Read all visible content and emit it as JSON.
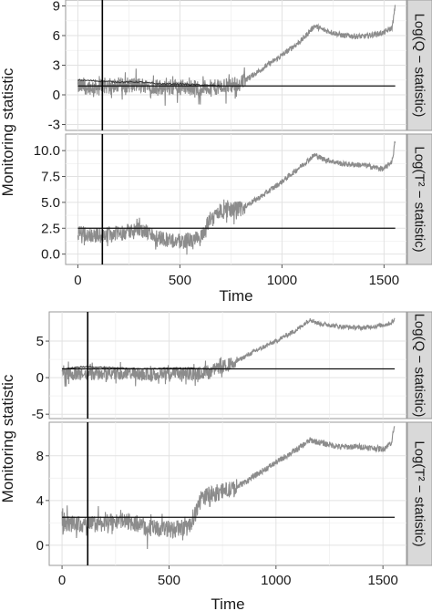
{
  "chart_data": [
    {
      "type": "line",
      "ylabel": "Monitoring statistic",
      "xlabel": "Time",
      "x_ticks": [
        0,
        500,
        1000,
        1500
      ],
      "xlim": [
        -60,
        1610
      ],
      "vertical_line_x": 120,
      "grid": true,
      "panels": [
        {
          "strip_label": "Log(Q − statistic)",
          "ylim": [
            -3.6,
            9.6
          ],
          "y_ticks": [
            "-3",
            "0",
            "3",
            "6",
            "9"
          ],
          "y_tick_values": [
            -3,
            0,
            3,
            6,
            9
          ],
          "control_limit": 0.9,
          "series": [
            {
              "name": "",
              "x": [
                0,
                100,
                200,
                300,
                400,
                500,
                600,
                700,
                800,
                900,
                1000,
                1100,
                1160,
                1200,
                1300,
                1400,
                1500,
                1540,
                1555
              ],
              "values": [
                0.8,
                0.8,
                1.0,
                1.0,
                0.8,
                0.8,
                0.7,
                0.8,
                1.2,
                2.6,
                4.0,
                5.6,
                7.0,
                6.6,
                6.0,
                5.9,
                6.3,
                6.8,
                9.0
              ]
            },
            {
              "name": "",
              "x": [
                0,
                100,
                200,
                300,
                400,
                500,
                600,
                700
              ],
              "values": [
                1.5,
                1.4,
                1.3,
                1.3,
                1.1,
                1.1,
                1.0,
                0.9
              ]
            }
          ]
        },
        {
          "strip_label": "Log(T² − statistic)",
          "ylim": [
            -1.0,
            11.6
          ],
          "y_ticks": [
            "0.0",
            "2.5",
            "5.0",
            "7.5",
            "10.0"
          ],
          "y_tick_values": [
            0,
            2.5,
            5,
            7.5,
            10
          ],
          "control_limit": 2.5,
          "series": [
            {
              "name": "",
              "x": [
                0,
                100,
                200,
                300,
                400,
                500,
                600,
                650,
                700,
                800,
                900,
                1000,
                1100,
                1160,
                1200,
                1300,
                1400,
                1500,
                1540,
                1555
              ],
              "values": [
                2.0,
                1.8,
                2.0,
                2.4,
                1.6,
                1.2,
                1.5,
                3.5,
                4.2,
                4.4,
                5.6,
                7.0,
                8.6,
                9.6,
                9.2,
                8.7,
                8.6,
                8.2,
                9.0,
                11.0
              ]
            }
          ]
        }
      ]
    },
    {
      "type": "line",
      "ylabel": "Monitoring statistic",
      "xlabel": "Time",
      "x_ticks": [
        0,
        500,
        1000,
        1500
      ],
      "xlim": [
        -60,
        1610
      ],
      "vertical_line_x": 120,
      "grid": true,
      "panels": [
        {
          "strip_label": "Log(Q − statistic)",
          "ylim": [
            -5.6,
            9.0
          ],
          "y_ticks": [
            "-5",
            "0",
            "5"
          ],
          "y_tick_values": [
            -5,
            0,
            5
          ],
          "control_limit": 1.2,
          "series": [
            {
              "name": "",
              "x": [
                0,
                100,
                200,
                300,
                400,
                500,
                600,
                700,
                800,
                900,
                1000,
                1100,
                1160,
                1200,
                1300,
                1400,
                1500,
                1540,
                1555
              ],
              "values": [
                0.6,
                0.4,
                0.6,
                0.6,
                0.4,
                0.6,
                0.4,
                1.0,
                2.0,
                3.6,
                5.0,
                6.6,
                8.0,
                7.4,
                7.0,
                6.8,
                7.2,
                7.5,
                8.0
              ]
            },
            {
              "name": "",
              "x": [
                0,
                100,
                200,
                300,
                400,
                500,
                600,
                700
              ],
              "values": [
                1.2,
                1.5,
                1.4,
                1.3,
                1.2,
                1.3,
                1.3,
                1.2
              ]
            }
          ]
        },
        {
          "strip_label": "Log(T² − statistic)",
          "ylim": [
            -1.8,
            11.0
          ],
          "y_ticks": [
            "0",
            "4",
            "8"
          ],
          "y_tick_values": [
            0,
            4,
            8
          ],
          "control_limit": 2.5,
          "series": [
            {
              "name": "",
              "x": [
                0,
                100,
                200,
                300,
                400,
                500,
                600,
                650,
                700,
                800,
                900,
                1000,
                1100,
                1160,
                1200,
                1300,
                1400,
                1500,
                1540,
                1555
              ],
              "values": [
                2.0,
                1.8,
                2.0,
                2.2,
                1.6,
                1.4,
                1.6,
                4.2,
                4.6,
                5.0,
                6.2,
                7.4,
                8.6,
                9.4,
                9.2,
                8.8,
                8.8,
                8.6,
                9.2,
                10.8
              ]
            }
          ]
        }
      ]
    }
  ]
}
